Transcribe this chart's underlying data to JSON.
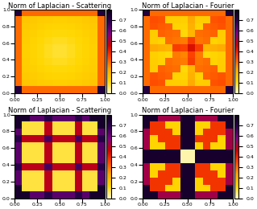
{
  "title_top_left": "Norm of Laplacian - Scattering",
  "title_top_right": "Norm of Laplacian - Fourier",
  "title_bot_left": "Norm of Laplacian - Scattering",
  "title_bot_right": "Norm of Laplacian - Fourier",
  "cmap": "hot",
  "n": 12,
  "vmin": 0.0,
  "vmax": 0.8,
  "figsize": [
    3.19,
    2.6
  ],
  "dpi": 100,
  "title_fontsize": 6.0
}
